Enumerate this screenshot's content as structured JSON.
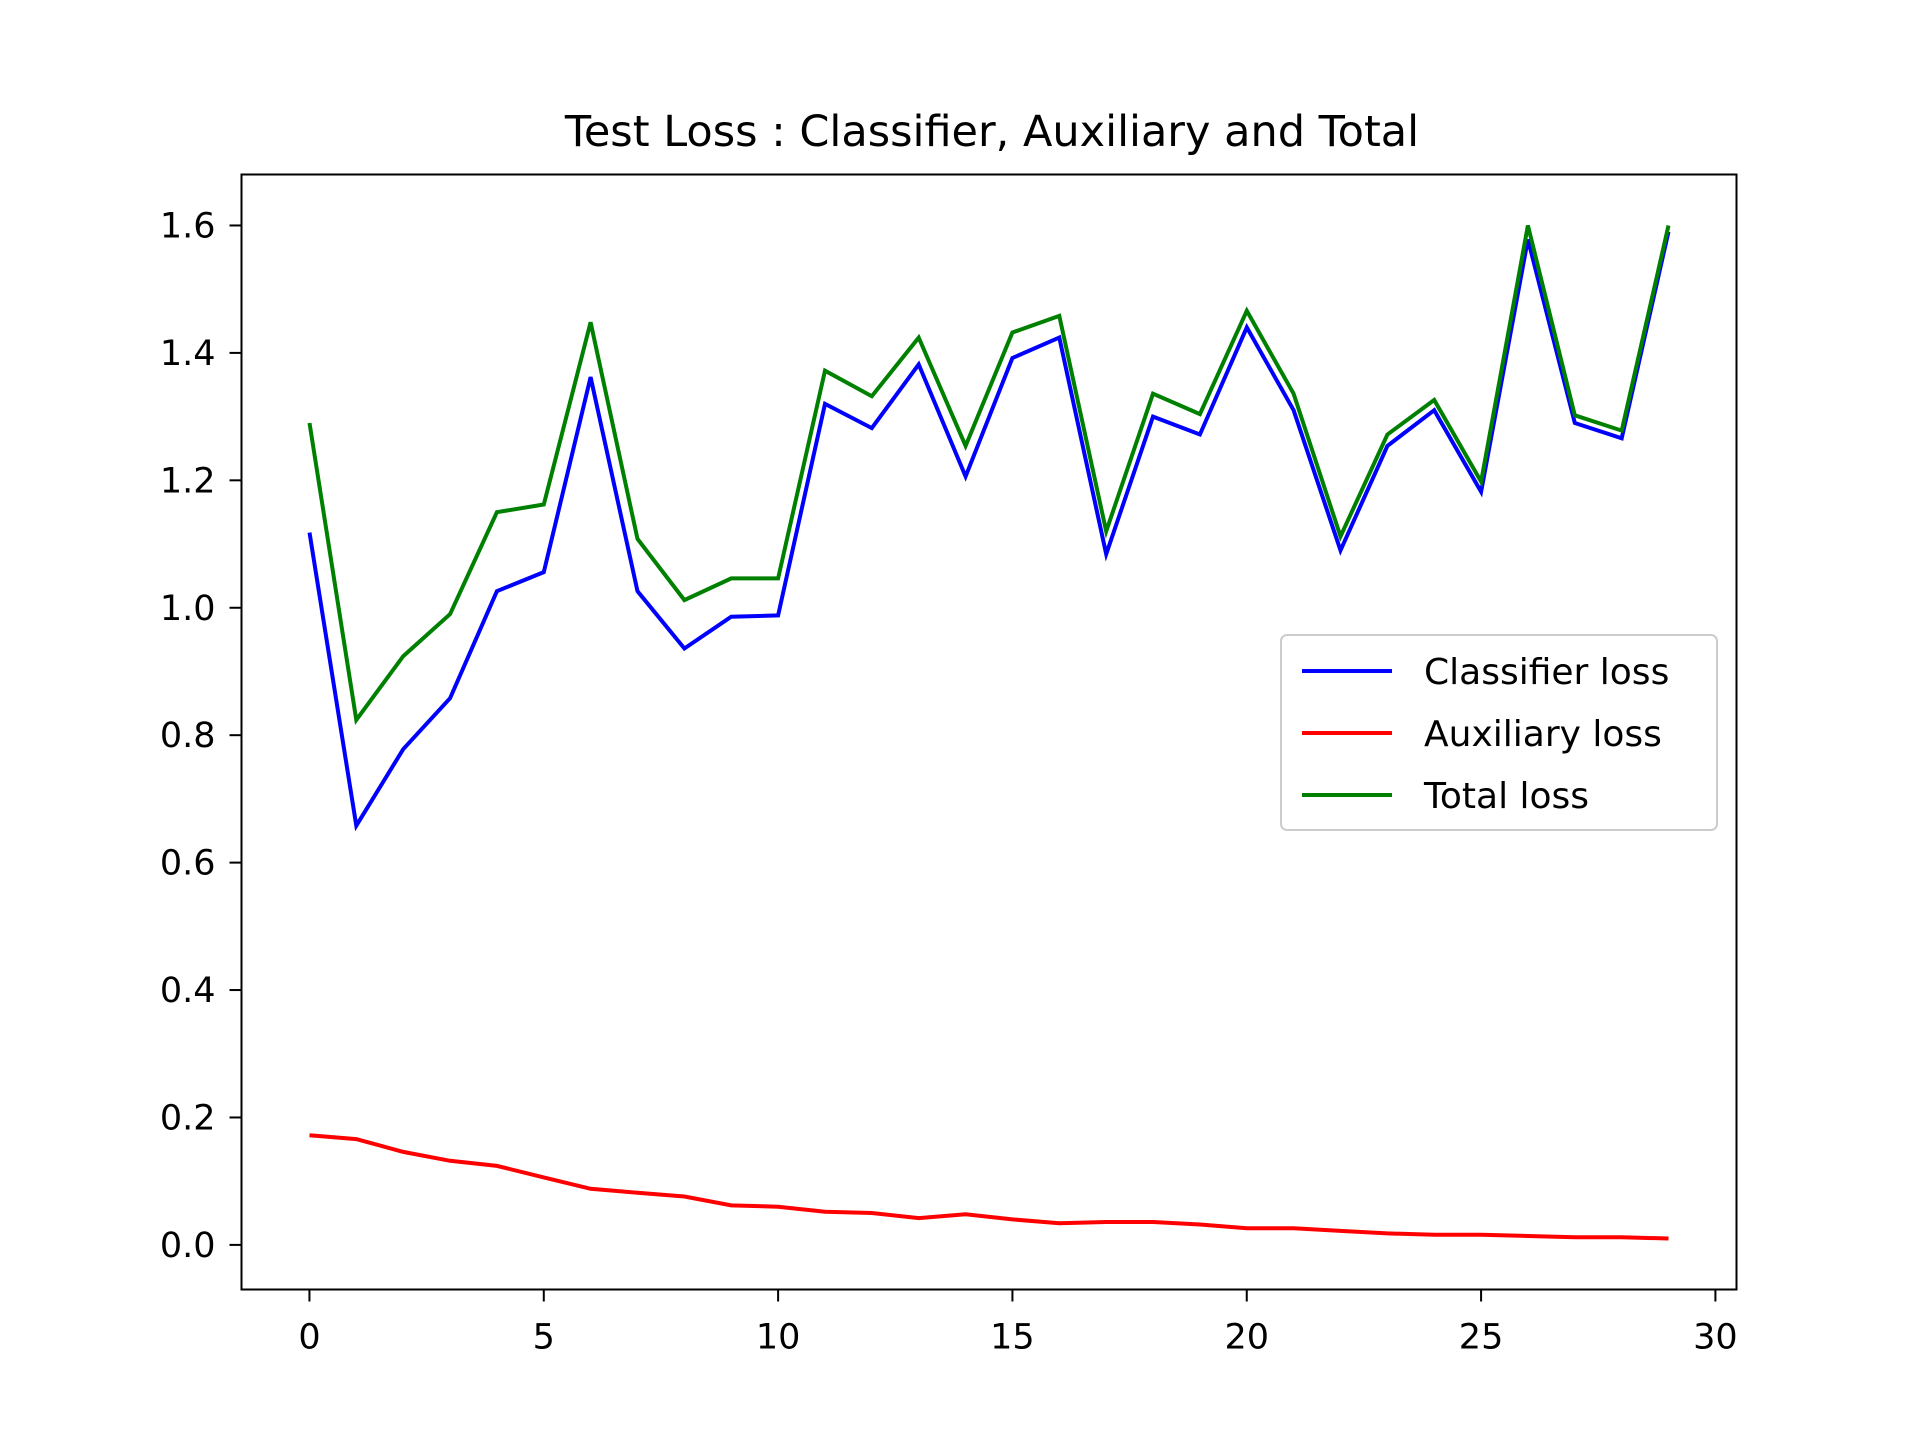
{
  "chart_data": {
    "type": "line",
    "title": "Test Loss : Classifier, Auxiliary and Total",
    "xlabel": "",
    "ylabel": "",
    "xlim": [
      -1.45,
      30.45
    ],
    "ylim": [
      -0.07,
      1.68
    ],
    "xticks": [
      0,
      5,
      10,
      15,
      20,
      25,
      30
    ],
    "yticks": [
      0.0,
      0.2,
      0.4,
      0.6,
      0.8,
      1.0,
      1.2,
      1.4,
      1.6
    ],
    "ytick_labels": [
      "0.0",
      "0.2",
      "0.4",
      "0.6",
      "0.8",
      "1.0",
      "1.2",
      "1.4",
      "1.6"
    ],
    "grid": false,
    "legend_position": "center-right",
    "x": [
      0,
      1,
      2,
      3,
      4,
      5,
      6,
      7,
      8,
      9,
      10,
      11,
      12,
      13,
      14,
      15,
      16,
      17,
      18,
      19,
      20,
      21,
      22,
      23,
      24,
      25,
      26,
      27,
      28,
      29
    ],
    "series": [
      {
        "name": "Classifier loss",
        "color": "#0000ff",
        "values": [
          1.118,
          0.658,
          0.778,
          0.858,
          1.026,
          1.056,
          1.362,
          1.026,
          0.936,
          0.986,
          0.988,
          1.32,
          1.282,
          1.382,
          1.206,
          1.392,
          1.424,
          1.084,
          1.3,
          1.272,
          1.44,
          1.31,
          1.09,
          1.254,
          1.31,
          1.182,
          1.578,
          1.29,
          1.266,
          1.59
        ]
      },
      {
        "name": "Auxiliary loss",
        "color": "#ff0000",
        "values": [
          0.172,
          0.166,
          0.146,
          0.132,
          0.124,
          0.106,
          0.088,
          0.082,
          0.076,
          0.062,
          0.06,
          0.052,
          0.05,
          0.042,
          0.048,
          0.04,
          0.034,
          0.036,
          0.036,
          0.032,
          0.026,
          0.026,
          0.022,
          0.018,
          0.016,
          0.016,
          0.014,
          0.012,
          0.012,
          0.01
        ]
      },
      {
        "name": "Total loss",
        "color": "#008000",
        "values": [
          1.29,
          0.824,
          0.924,
          0.99,
          1.15,
          1.162,
          1.448,
          1.108,
          1.012,
          1.046,
          1.046,
          1.372,
          1.332,
          1.424,
          1.254,
          1.432,
          1.458,
          1.12,
          1.336,
          1.304,
          1.466,
          1.336,
          1.112,
          1.272,
          1.326,
          1.198,
          1.6,
          1.302,
          1.278,
          1.6
        ]
      }
    ]
  }
}
